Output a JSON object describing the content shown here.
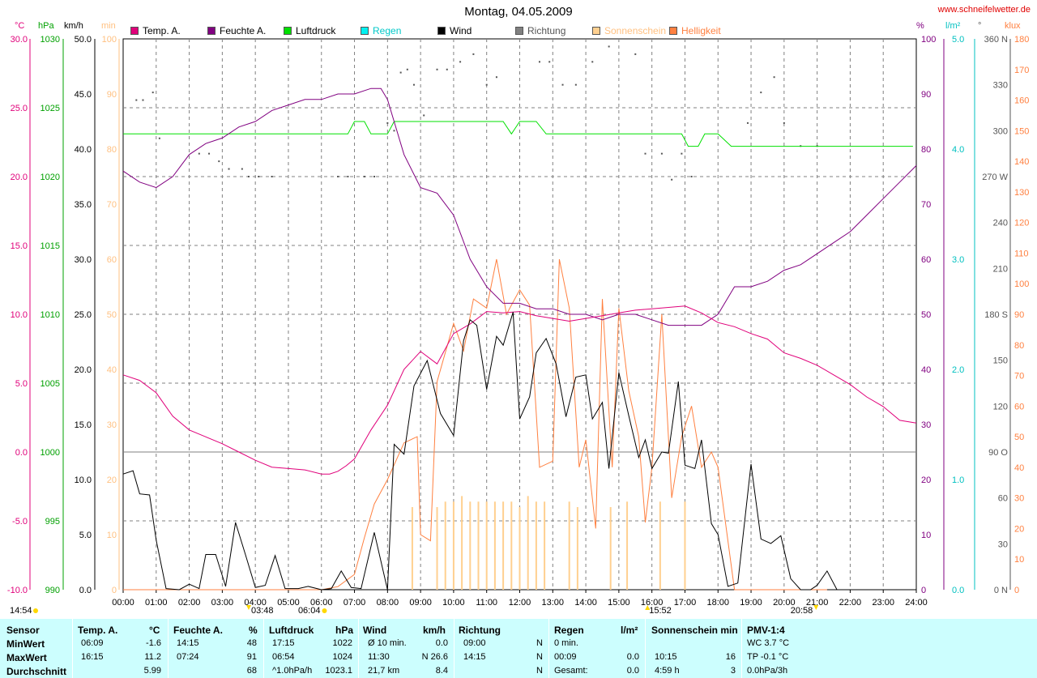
{
  "header": {
    "title": "Montag, 04.05.2009",
    "site": "www.schneifelwetter.de"
  },
  "legend": [
    {
      "label": "Temp. A.",
      "color": "#e0007a"
    },
    {
      "label": "Feuchte A.",
      "color": "#800080"
    },
    {
      "label": "Luftdruck",
      "color": "#00e000"
    },
    {
      "label": "Regen",
      "color": "#00f0f0"
    },
    {
      "label": "Wind",
      "color": "#000000"
    },
    {
      "label": "Richtung",
      "color": "#808080"
    },
    {
      "label": "Sonnenschein",
      "color": "#ffd090"
    },
    {
      "label": "Helligkeit",
      "color": "#ff8040"
    }
  ],
  "units": {
    "temp": "°C",
    "pressure": "hPa",
    "wind": "km/h",
    "sun": "min",
    "humidity": "%",
    "rain": "l/m²",
    "direction": "°",
    "light": "klux"
  },
  "axes": {
    "temp_ticks": [
      "30.0",
      "25.0",
      "20.0",
      "15.0",
      "10.0",
      "5.0",
      "0.0",
      "-5.0",
      "-10.0"
    ],
    "pressure_ticks": [
      "1030",
      "1025",
      "1020",
      "1015",
      "1010",
      "1005",
      "1000",
      "995",
      "990"
    ],
    "wind_ticks": [
      "50.0",
      "45.0",
      "40.0",
      "35.0",
      "30.0",
      "25.0",
      "20.0",
      "15.0",
      "10.0",
      "5.0",
      "0.0"
    ],
    "sun_ticks": [
      "100",
      "90",
      "80",
      "70",
      "60",
      "50",
      "40",
      "30",
      "20",
      "10",
      "0"
    ],
    "humidity_ticks": [
      "100",
      "90",
      "80",
      "70",
      "60",
      "50",
      "40",
      "30",
      "20",
      "10",
      "0"
    ],
    "rain_ticks": [
      "5.0",
      "4.0",
      "3.0",
      "2.0",
      "1.0",
      "0.0"
    ],
    "direction_ticks": [
      "360 N",
      "330",
      "300",
      "270 W",
      "240",
      "210",
      "180 S",
      "150",
      "120",
      "90 O",
      "60",
      "30",
      "0 N"
    ],
    "light_ticks": [
      "180",
      "170",
      "160",
      "150",
      "140",
      "130",
      "120",
      "110",
      "100",
      "90",
      "80",
      "70",
      "60",
      "50",
      "40",
      "30",
      "20",
      "10",
      "0"
    ],
    "x_ticks": [
      "00:00",
      "01:00",
      "02:00",
      "03:00",
      "04:00",
      "05:00",
      "06:00",
      "07:00",
      "08:00",
      "09:00",
      "10:00",
      "11:00",
      "12:00",
      "13:00",
      "14:00",
      "15:00",
      "16:00",
      "17:00",
      "18:00",
      "19:00",
      "20:00",
      "21:00",
      "22:00",
      "23:00",
      "24:00"
    ]
  },
  "markers": {
    "moonset": "14:54",
    "moonrise": "03:48",
    "sunrise": "06:04",
    "sun_culmination": "15:52",
    "sunset": "20:58"
  },
  "chart_data": {
    "type": "line",
    "title": "Montag, 04.05.2009",
    "x_range": [
      "00:00",
      "24:00"
    ],
    "series": [
      {
        "name": "Temp. A.",
        "color": "#e0007a",
        "axis": "°C",
        "ylim": [
          -10,
          30
        ],
        "x": [
          0,
          0.5,
          1,
          1.5,
          2,
          2.5,
          3,
          3.5,
          4,
          4.5,
          5,
          5.5,
          6,
          6.25,
          6.5,
          6.75,
          7,
          7.5,
          8,
          8.5,
          9,
          9.5,
          10,
          10.5,
          11,
          11.5,
          12,
          12.5,
          13,
          13.5,
          14,
          14.5,
          15,
          15.5,
          16,
          16.5,
          17,
          17.5,
          18,
          18.5,
          19,
          19.5,
          20,
          20.5,
          21,
          21.5,
          22,
          22.5,
          23,
          23.5,
          24
        ],
        "y": [
          5.6,
          5.2,
          4.3,
          2.6,
          1.6,
          1.1,
          0.6,
          0.0,
          -0.6,
          -1.1,
          -1.2,
          -1.3,
          -1.6,
          -1.6,
          -1.4,
          -1.0,
          -0.5,
          1.6,
          3.4,
          6.0,
          7.3,
          6.4,
          8.6,
          9.3,
          10.2,
          10.1,
          10.2,
          9.9,
          9.7,
          9.5,
          9.7,
          9.9,
          10.1,
          10.3,
          10.4,
          10.5,
          10.6,
          10.1,
          9.4,
          9.1,
          8.6,
          8.2,
          7.2,
          6.8,
          6.3,
          5.6,
          4.9,
          4.0,
          3.3,
          2.3,
          2.1
        ]
      },
      {
        "name": "Feuchte A.",
        "color": "#800080",
        "axis": "%",
        "ylim": [
          0,
          100
        ],
        "x": [
          0,
          0.5,
          1,
          1.5,
          2,
          2.5,
          3,
          3.5,
          4,
          4.5,
          5,
          5.5,
          6,
          6.5,
          7,
          7.5,
          7.8,
          8,
          8.5,
          9,
          9.5,
          10,
          10.5,
          11,
          11.5,
          12,
          12.5,
          13,
          13.5,
          14,
          14.5,
          15,
          15.5,
          16,
          16.5,
          17,
          17.5,
          18,
          18.5,
          19,
          19.5,
          20,
          20.5,
          21,
          21.5,
          22,
          22.5,
          23,
          23.5,
          24
        ],
        "y": [
          76,
          74,
          73,
          75,
          79,
          81,
          82,
          84,
          85,
          87,
          88,
          89,
          89,
          90,
          90,
          91,
          91,
          89,
          79,
          73,
          72,
          68,
          60,
          55,
          52,
          52,
          51,
          51,
          50,
          50,
          49,
          50,
          50,
          49,
          48,
          48,
          48,
          50,
          55,
          55,
          56,
          58,
          59,
          61,
          63,
          65,
          68,
          71,
          74,
          77
        ]
      },
      {
        "name": "Luftdruck",
        "color": "#00e000",
        "axis": "hPa",
        "ylim": [
          990,
          1030
        ],
        "x": [
          0,
          6.8,
          7,
          7.3,
          7.5,
          8,
          8.2,
          8.5,
          11.5,
          11.75,
          12,
          12.5,
          12.8,
          13,
          16.5,
          16.9,
          17.1,
          17.4,
          17.6,
          18,
          18.4,
          23.9
        ],
        "y": [
          1023.1,
          1023.1,
          1024,
          1024,
          1023.1,
          1023.1,
          1024,
          1024,
          1024,
          1023.1,
          1024,
          1024,
          1023.1,
          1023.1,
          1023.1,
          1023.1,
          1022.2,
          1022.2,
          1023.1,
          1023.1,
          1022.2,
          1022.2
        ]
      },
      {
        "name": "Regen",
        "color": "#00f0f0",
        "axis": "l/m²",
        "ylim": [
          0,
          5
        ],
        "values": []
      },
      {
        "name": "Wind",
        "color": "#000000",
        "axis": "km/h",
        "ylim": [
          0,
          50
        ],
        "x": [
          0,
          0.3,
          0.5,
          0.8,
          1.0,
          1.3,
          1.7,
          2.0,
          2.3,
          2.5,
          2.8,
          3.1,
          3.4,
          3.7,
          4.0,
          4.3,
          4.6,
          4.9,
          5.3,
          5.6,
          6.0,
          6.3,
          6.6,
          6.9,
          7.2,
          7.6,
          8.0,
          8.2,
          8.5,
          8.8,
          9.2,
          9.6,
          10.0,
          10.3,
          10.5,
          10.7,
          11.0,
          11.3,
          11.5,
          11.8,
          12.0,
          12.3,
          12.5,
          12.8,
          13.1,
          13.4,
          13.7,
          14.0,
          14.2,
          14.5,
          14.7,
          15.0,
          15.3,
          15.6,
          15.8,
          16.0,
          16.3,
          16.5,
          16.8,
          17.0,
          17.3,
          17.5,
          17.8,
          18.0,
          18.3,
          18.6,
          19.0,
          19.3,
          19.6,
          19.9,
          20.2,
          20.5,
          20.8,
          21.0,
          21.3,
          21.6
        ],
        "y": [
          10.5,
          10.8,
          8.7,
          8.6,
          4.5,
          0.1,
          0.0,
          0.5,
          0.1,
          3.2,
          3.2,
          0.3,
          6.1,
          3.2,
          0.2,
          0.4,
          3.1,
          0.1,
          0.1,
          0.3,
          0.0,
          0.1,
          1.7,
          0.2,
          0.1,
          5.2,
          0.0,
          13.2,
          12.3,
          18.5,
          20.8,
          16.0,
          14.0,
          22.6,
          24.5,
          24.0,
          18.2,
          23.0,
          22.2,
          25.2,
          15.5,
          17.5,
          21.5,
          22.8,
          20.5,
          15.7,
          19.3,
          19.5,
          15.5,
          17.0,
          11.0,
          19.7,
          15.8,
          12.0,
          13.6,
          11.0,
          12.5,
          12.4,
          18.9,
          11.3,
          11.0,
          13.6,
          6.0,
          5.0,
          0.3,
          0.6,
          11.4,
          4.6,
          4.2,
          4.9,
          1.0,
          0.0,
          0.0,
          0.4,
          1.7,
          0.0
        ]
      },
      {
        "name": "Richtung",
        "color": "#808080",
        "axis": "°",
        "ylim": [
          0,
          360
        ],
        "x": [
          0.4,
          0.6,
          0.9,
          1.1,
          2.3,
          2.6,
          2.9,
          3.2,
          3.6,
          3.8,
          4.1,
          4.5,
          6.5,
          6.8,
          7.3,
          7.6,
          8.0,
          8.2,
          8.4,
          8.6,
          8.8,
          9.1,
          9.5,
          9.8,
          10.2,
          10.6,
          11.0,
          11.3,
          12.6,
          12.9,
          13.3,
          13.7,
          14.2,
          14.7,
          15.5,
          15.8,
          16.3,
          16.6,
          16.9,
          17.2,
          18.9,
          19.3,
          19.7,
          20.0,
          20.5,
          21.0
        ],
        "y": [
          320,
          320,
          325,
          295,
          285,
          285,
          280,
          275,
          275,
          270,
          270,
          270,
          270,
          270,
          270,
          270,
          305,
          300,
          338,
          340,
          330,
          310,
          340,
          340,
          345,
          350,
          330,
          335,
          345,
          345,
          330,
          330,
          345,
          355,
          350,
          285,
          285,
          268,
          285,
          270,
          305,
          325,
          335,
          305,
          290,
          290
        ]
      },
      {
        "name": "Sonnenschein",
        "color": "#ffd090",
        "axis": "min",
        "ylim": [
          0,
          100
        ],
        "x": [
          8.75,
          9.5,
          9.75,
          10.0,
          10.25,
          10.5,
          10.75,
          11.0,
          11.25,
          11.5,
          11.75,
          12.0,
          12.25,
          12.5,
          12.75,
          13.5,
          13.75,
          14.75,
          15.25,
          16.25,
          17.0
        ],
        "y": [
          15,
          15,
          16,
          16,
          17,
          16,
          16,
          16,
          16,
          16,
          16,
          15,
          17,
          16,
          16,
          16,
          15,
          15,
          16,
          16,
          16
        ]
      },
      {
        "name": "Helligkeit",
        "color": "#ff8040",
        "axis": "klux",
        "ylim": [
          0,
          180
        ],
        "x": [
          0,
          5.5,
          6.0,
          6.5,
          7.0,
          7.3,
          7.6,
          8.0,
          8.5,
          8.9,
          9.0,
          9.3,
          9.5,
          10.0,
          10.3,
          10.6,
          11.0,
          11.3,
          11.6,
          12.0,
          12.3,
          12.6,
          13.0,
          13.2,
          13.5,
          13.8,
          14.0,
          14.3,
          14.5,
          14.8,
          15.0,
          15.3,
          15.6,
          15.8,
          16.0,
          16.3,
          16.6,
          16.9,
          17.2,
          17.5,
          17.8,
          18.0,
          18.5,
          19.0,
          19.5,
          20.0,
          20.5,
          21.0,
          21.3
        ],
        "y": [
          0,
          0,
          0,
          1,
          5,
          17,
          28,
          36,
          48,
          50,
          18,
          16,
          68,
          87,
          78,
          95,
          92,
          108,
          90,
          98,
          93,
          40,
          42,
          108,
          92,
          40,
          49,
          20,
          95,
          40,
          92,
          65,
          50,
          22,
          40,
          90,
          30,
          50,
          60,
          40,
          45,
          40,
          0,
          0,
          0,
          0,
          0,
          0,
          0
        ]
      }
    ]
  },
  "table": {
    "headers": {
      "sensor": "Sensor",
      "temp": "Temp. A.",
      "temp_unit": "°C",
      "hum": "Feuchte A.",
      "hum_unit": "%",
      "press": "Luftdruck",
      "press_unit": "hPa",
      "wind": "Wind",
      "wind_unit": "km/h",
      "dir": "Richtung",
      "rain": "Regen",
      "rain_unit": "l/m²",
      "sun": "Sonnenschein min",
      "pmv": "PMV-1:4"
    },
    "rows": [
      {
        "label": "MinWert",
        "temp_t": "06:09",
        "temp_v": "-1.6",
        "hum_t": "14:15",
        "hum_v": "48",
        "press_t": "17:15",
        "press_v": "1022",
        "wind_t": "Ø 10 min.",
        "wind_v": "0.0",
        "dir_t": "09:00",
        "dir_v": "N",
        "rain_t": "0 min.",
        "rain_v": "",
        "sun_t": "",
        "sun_v": "",
        "pmv": "WC 3.7 °C"
      },
      {
        "label": "MaxWert",
        "temp_t": "16:15",
        "temp_v": "11.2",
        "hum_t": "07:24",
        "hum_v": "91",
        "press_t": "06:54",
        "press_v": "1024",
        "wind_t": "11:30",
        "wind_v": "N 26.6",
        "dir_t": "14:15",
        "dir_v": "N",
        "rain_t": "00:09",
        "rain_v": "0.0",
        "sun_t": "10:15",
        "sun_v": "16",
        "pmv": "TP -0.1 °C"
      },
      {
        "label": "Durchschnitt",
        "temp_t": "",
        "temp_v": "5.99",
        "hum_t": "",
        "hum_v": "68",
        "press_t": "^1.0hPa/h",
        "press_v": "1023.1",
        "wind_t": "21,7 km",
        "wind_v": "8.4",
        "dir_t": "",
        "dir_v": "N",
        "rain_t": "Gesamt:",
        "rain_v": "0.0",
        "sun_t": "4:59 h",
        "sun_v": "3",
        "pmv": "0.0hPa/3h"
      }
    ]
  }
}
